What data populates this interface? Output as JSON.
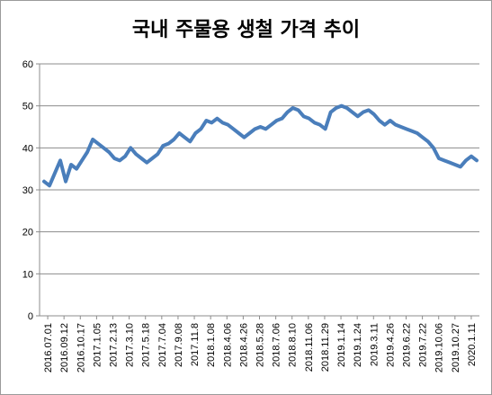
{
  "chart_data": {
    "type": "line",
    "title": "국내 주물용 생철 가격 추이",
    "xlabel": "",
    "ylabel": "",
    "ylim": [
      0,
      60
    ],
    "yticks": [
      0,
      10,
      20,
      30,
      40,
      50,
      60
    ],
    "grid": true,
    "legend": "none",
    "line_color": "#4a7ebb",
    "x_tick_labels": [
      "2016.07.01",
      "2016.09.12",
      "2016.10.17",
      "2017.1.05",
      "2017.2.13",
      "2017.3.10",
      "2017.5.18",
      "2017.7.04",
      "2017.9.08",
      "2017.11.8",
      "2018.1.08",
      "2018.4.06",
      "2018.4.26",
      "2018.5.28",
      "2018.7.06",
      "2018.8.10",
      "2018.11.06",
      "2018.11.29",
      "2019.1.14",
      "2019.1.24",
      "2019.3.11",
      "2019.4.26",
      "2019.6.22",
      "2019.7.22",
      "2019.10.06",
      "2019.10.27",
      "2020.1.11"
    ],
    "series": [
      {
        "values": [
          32,
          31,
          34,
          37,
          32,
          36,
          35,
          37,
          39,
          42,
          41,
          40,
          39,
          37.5,
          37,
          38,
          40,
          38.5,
          37.5,
          36.5,
          37.5,
          38.5,
          40.5,
          41,
          42,
          43.5,
          42.5,
          41.5,
          43.5,
          44.5,
          46.5,
          46,
          47,
          46,
          45.5,
          44.5,
          43.5,
          42.5,
          43.5,
          44.5,
          45,
          44.5,
          45.5,
          46.5,
          47,
          48.5,
          49.5,
          49,
          47.5,
          47,
          46,
          45.5,
          44.5,
          48.5,
          49.5,
          50,
          49.5,
          48.5,
          47.5,
          48.5,
          49,
          48,
          46.5,
          45.5,
          46.5,
          45.5,
          45,
          44.5,
          44,
          43.5,
          42.5,
          41.5,
          40,
          37.5,
          37,
          36.5,
          36,
          35.5,
          37,
          38,
          37
        ]
      }
    ]
  }
}
